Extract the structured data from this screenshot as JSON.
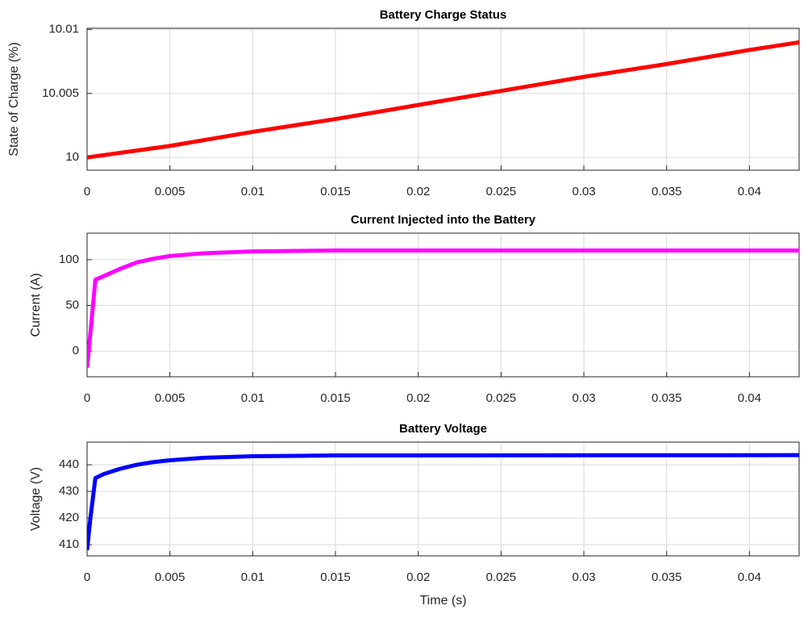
{
  "chart_data": [
    {
      "type": "line",
      "title": "Battery Charge Status",
      "ylabel": "State of Charge (%)",
      "xlim": [
        0,
        0.043
      ],
      "xticks": [
        0,
        0.005,
        0.01,
        0.015,
        0.02,
        0.025,
        0.03,
        0.035,
        0.04
      ],
      "ylim": [
        9.999,
        10.0101
      ],
      "yticks": [
        10,
        10.005,
        10.01
      ],
      "grid": true,
      "series": [
        {
          "color": "#ff0000",
          "x": [
            0,
            0.005,
            0.01,
            0.015,
            0.02,
            0.025,
            0.03,
            0.035,
            0.04,
            0.043
          ],
          "values": [
            10.0,
            10.0009,
            10.002,
            10.003,
            10.0041,
            10.0052,
            10.0063,
            10.0073,
            10.0084,
            10.009
          ]
        }
      ]
    },
    {
      "type": "line",
      "title": "Current Injected into the Battery",
      "ylabel": "Current (A)",
      "xlim": [
        0,
        0.043
      ],
      "xticks": [
        0,
        0.005,
        0.01,
        0.015,
        0.02,
        0.025,
        0.03,
        0.035,
        0.04
      ],
      "ylim": [
        -28,
        129
      ],
      "yticks": [
        0,
        50,
        100
      ],
      "grid": true,
      "series": [
        {
          "color": "#ff00ff",
          "x": [
            0,
            0.0002,
            0.0005,
            0.001,
            0.002,
            0.003,
            0.004,
            0.005,
            0.007,
            0.01,
            0.015,
            0.02,
            0.043
          ],
          "values": [
            -18,
            20,
            78,
            82,
            90,
            97,
            101,
            104,
            107,
            109,
            110,
            110,
            110
          ]
        }
      ]
    },
    {
      "type": "line",
      "title": "Battery Voltage",
      "ylabel": "Voltage (V)",
      "xlabel": "Time (s)",
      "xlim": [
        0,
        0.043
      ],
      "xticks": [
        0,
        0.005,
        0.01,
        0.015,
        0.02,
        0.025,
        0.03,
        0.035,
        0.04
      ],
      "ylim": [
        405.8,
        448.5
      ],
      "yticks": [
        410,
        420,
        430,
        440
      ],
      "grid": true,
      "series": [
        {
          "color": "#0000ff",
          "x": [
            0,
            0.0002,
            0.0005,
            0.001,
            0.002,
            0.003,
            0.004,
            0.005,
            0.007,
            0.01,
            0.015,
            0.043
          ],
          "values": [
            408,
            420,
            435,
            436.5,
            438.5,
            440,
            441,
            441.7,
            442.6,
            443.2,
            443.5,
            443.6
          ]
        }
      ]
    }
  ]
}
